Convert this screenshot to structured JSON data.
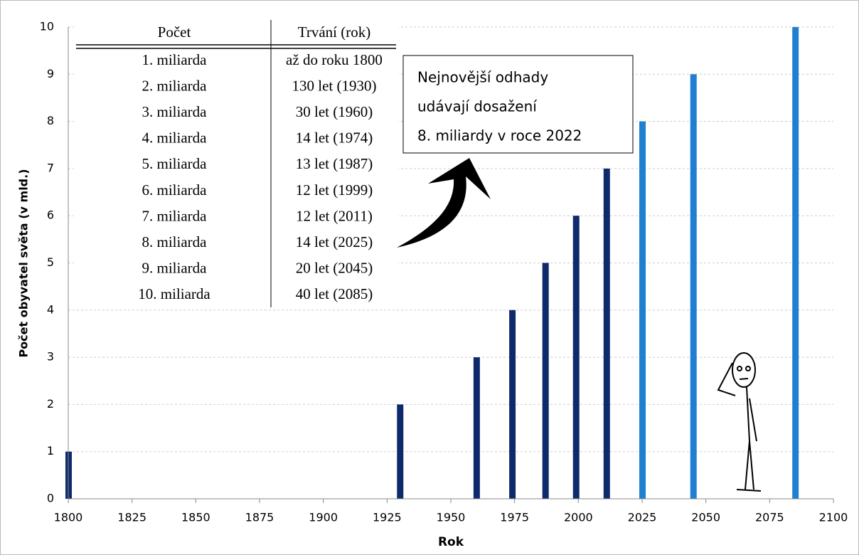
{
  "chart_data": {
    "type": "bar",
    "x_label": "Rok",
    "y_label": "Počet obyvatel světa (v mld.)",
    "x": [
      1800,
      1930,
      1960,
      1974,
      1987,
      1999,
      2011,
      2025,
      2045,
      2085
    ],
    "values": [
      1,
      2,
      3,
      4,
      5,
      6,
      7,
      8,
      9,
      10
    ],
    "colors": [
      "#0f2a6b",
      "#0f2a6b",
      "#0f2a6b",
      "#0f2a6b",
      "#0f2a6b",
      "#0f2a6b",
      "#0f2a6b",
      "#1f7fd0",
      "#1f7fd0",
      "#1f7fd0"
    ],
    "xlim": [
      1800,
      2100
    ],
    "xticks": [
      1800,
      1825,
      1850,
      1875,
      1900,
      1925,
      1950,
      1975,
      2000,
      2025,
      2050,
      2075,
      2100
    ],
    "ylim": [
      0,
      10
    ],
    "yticks": [
      0,
      1,
      2,
      3,
      4,
      5,
      6,
      7,
      8,
      9,
      10
    ],
    "grid": true,
    "table": {
      "columns": [
        "Počet",
        "Trvání (rok)"
      ],
      "rows": [
        [
          "1. miliarda",
          "až do roku 1800"
        ],
        [
          "2. miliarda",
          "130 let (1930)"
        ],
        [
          "3. miliarda",
          "30 let (1960)"
        ],
        [
          "4. miliarda",
          "14 let (1974)"
        ],
        [
          "5. miliarda",
          "13 let (1987)"
        ],
        [
          "6. miliarda",
          "12 let (1999)"
        ],
        [
          "7. miliarda",
          "12 let (2011)"
        ],
        [
          "8. miliarda",
          "14 let (2025)"
        ],
        [
          "9. miliarda",
          "20 let (2045)"
        ],
        [
          "10. miliarda",
          "40 let (2085)"
        ]
      ]
    },
    "annotation": [
      "Nejnovější odhady",
      "udávají dosažení",
      "8. miliardy v roce 2022"
    ]
  }
}
